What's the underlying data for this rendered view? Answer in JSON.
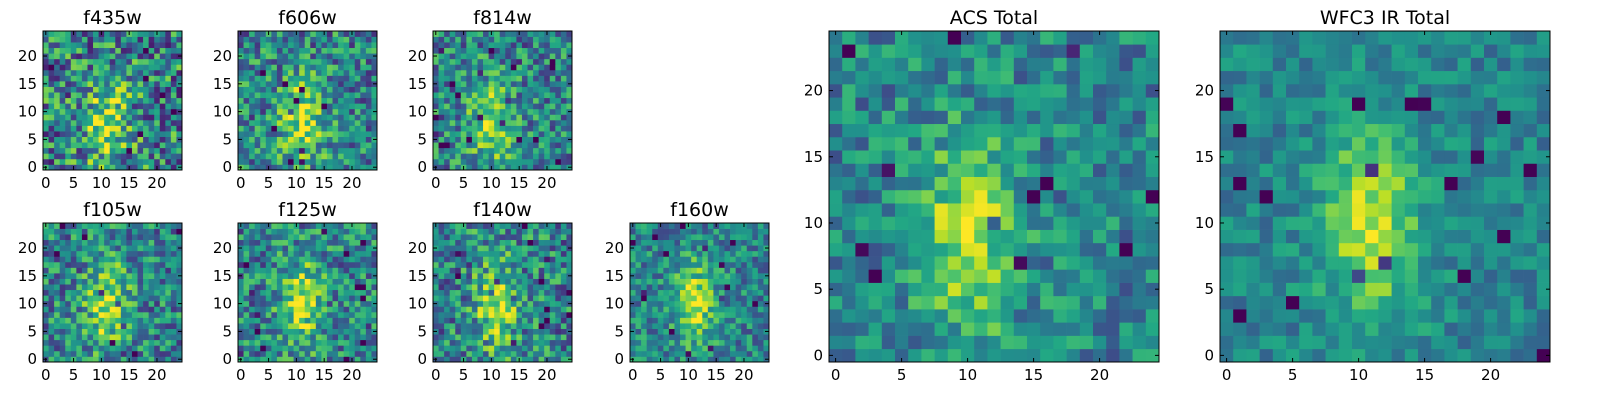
{
  "chart_data": [
    {
      "type": "heatmap",
      "title": "f435w",
      "colormap": "viridis",
      "grid_size": 25,
      "extent": [
        0,
        24
      ],
      "ylim": [
        0,
        24
      ],
      "xticks": [
        0,
        5,
        10,
        15,
        20
      ],
      "yticks": [
        0,
        5,
        10,
        15,
        20
      ],
      "xtick_labels": [
        "0",
        "5",
        "10",
        "15",
        "20"
      ],
      "ytick_labels": [
        "0",
        "5",
        "10",
        "15",
        "20"
      ],
      "center": [
        11,
        8
      ],
      "noise": 0.38,
      "seed": 435
    },
    {
      "type": "heatmap",
      "title": "f606w",
      "colormap": "viridis",
      "grid_size": 25,
      "extent": [
        0,
        24
      ],
      "ylim": [
        0,
        24
      ],
      "xticks": [
        0,
        5,
        10,
        15,
        20
      ],
      "yticks": [
        0,
        5,
        10,
        15,
        20
      ],
      "xtick_labels": [
        "0",
        "5",
        "10",
        "15",
        "20"
      ],
      "ytick_labels": [
        "0",
        "5",
        "10",
        "15",
        "20"
      ],
      "center": [
        11,
        8
      ],
      "noise": 0.32,
      "seed": 606
    },
    {
      "type": "heatmap",
      "title": "f814w",
      "colormap": "viridis",
      "grid_size": 25,
      "extent": [
        0,
        24
      ],
      "ylim": [
        0,
        24
      ],
      "xticks": [
        0,
        5,
        10,
        15,
        20
      ],
      "yticks": [
        0,
        5,
        10,
        15,
        20
      ],
      "xtick_labels": [
        "0",
        "5",
        "10",
        "15",
        "20"
      ],
      "ytick_labels": [
        "0",
        "5",
        "10",
        "15",
        "20"
      ],
      "center": [
        10,
        8
      ],
      "noise": 0.3,
      "seed": 814
    },
    {
      "type": "heatmap",
      "title": "f105w",
      "colormap": "viridis",
      "grid_size": 25,
      "extent": [
        0,
        24
      ],
      "ylim": [
        0,
        24
      ],
      "xticks": [
        0,
        5,
        10,
        15,
        20
      ],
      "yticks": [
        0,
        5,
        10,
        15,
        20
      ],
      "xtick_labels": [
        "0",
        "5",
        "10",
        "15",
        "20"
      ],
      "ytick_labels": [
        "0",
        "5",
        "10",
        "15",
        "20"
      ],
      "center": [
        11,
        10
      ],
      "noise": 0.3,
      "seed": 105
    },
    {
      "type": "heatmap",
      "title": "f125w",
      "colormap": "viridis",
      "grid_size": 25,
      "extent": [
        0,
        24
      ],
      "ylim": [
        0,
        24
      ],
      "xticks": [
        0,
        5,
        10,
        15,
        20
      ],
      "yticks": [
        0,
        5,
        10,
        15,
        20
      ],
      "xtick_labels": [
        "0",
        "5",
        "10",
        "15",
        "20"
      ],
      "ytick_labels": [
        "0",
        "5",
        "10",
        "15",
        "20"
      ],
      "center": [
        11,
        10
      ],
      "noise": 0.3,
      "seed": 125
    },
    {
      "type": "heatmap",
      "title": "f140w",
      "colormap": "viridis",
      "grid_size": 25,
      "extent": [
        0,
        24
      ],
      "ylim": [
        0,
        24
      ],
      "xticks": [
        0,
        5,
        10,
        15,
        20
      ],
      "yticks": [
        0,
        5,
        10,
        15,
        20
      ],
      "xtick_labels": [
        "0",
        "5",
        "10",
        "15",
        "20"
      ],
      "ytick_labels": [
        "0",
        "5",
        "10",
        "15",
        "20"
      ],
      "center": [
        11,
        10
      ],
      "noise": 0.32,
      "seed": 140
    },
    {
      "type": "heatmap",
      "title": "f160w",
      "colormap": "viridis",
      "grid_size": 25,
      "extent": [
        0,
        24
      ],
      "ylim": [
        0,
        24
      ],
      "xticks": [
        0,
        5,
        10,
        15,
        20
      ],
      "yticks": [
        0,
        5,
        10,
        15,
        20
      ],
      "xtick_labels": [
        "0",
        "5",
        "10",
        "15",
        "20"
      ],
      "ytick_labels": [
        "0",
        "5",
        "10",
        "15",
        "20"
      ],
      "center": [
        11,
        10
      ],
      "noise": 0.24,
      "seed": 160
    },
    {
      "type": "heatmap",
      "title": "ACS Total",
      "colormap": "viridis",
      "grid_size": 25,
      "extent": [
        0,
        24
      ],
      "ylim": [
        0,
        24
      ],
      "xticks": [
        0,
        5,
        10,
        15,
        20
      ],
      "yticks": [
        0,
        5,
        10,
        15,
        20
      ],
      "xtick_labels": [
        "0",
        "5",
        "10",
        "15",
        "20"
      ],
      "ytick_labels": [
        "0",
        "5",
        "10",
        "15",
        "20"
      ],
      "center": [
        10,
        9
      ],
      "noise": 0.22,
      "seed": 1001
    },
    {
      "type": "heatmap",
      "title": "WFC3 IR Total",
      "colormap": "viridis",
      "grid_size": 25,
      "extent": [
        0,
        24
      ],
      "ylim": [
        0,
        24
      ],
      "xticks": [
        0,
        5,
        10,
        15,
        20
      ],
      "yticks": [
        0,
        5,
        10,
        15,
        20
      ],
      "xtick_labels": [
        "0",
        "5",
        "10",
        "15",
        "20"
      ],
      "ytick_labels": [
        "0",
        "5",
        "10",
        "15",
        "20"
      ],
      "center": [
        11,
        10
      ],
      "noise": 0.15,
      "seed": 2002
    }
  ]
}
